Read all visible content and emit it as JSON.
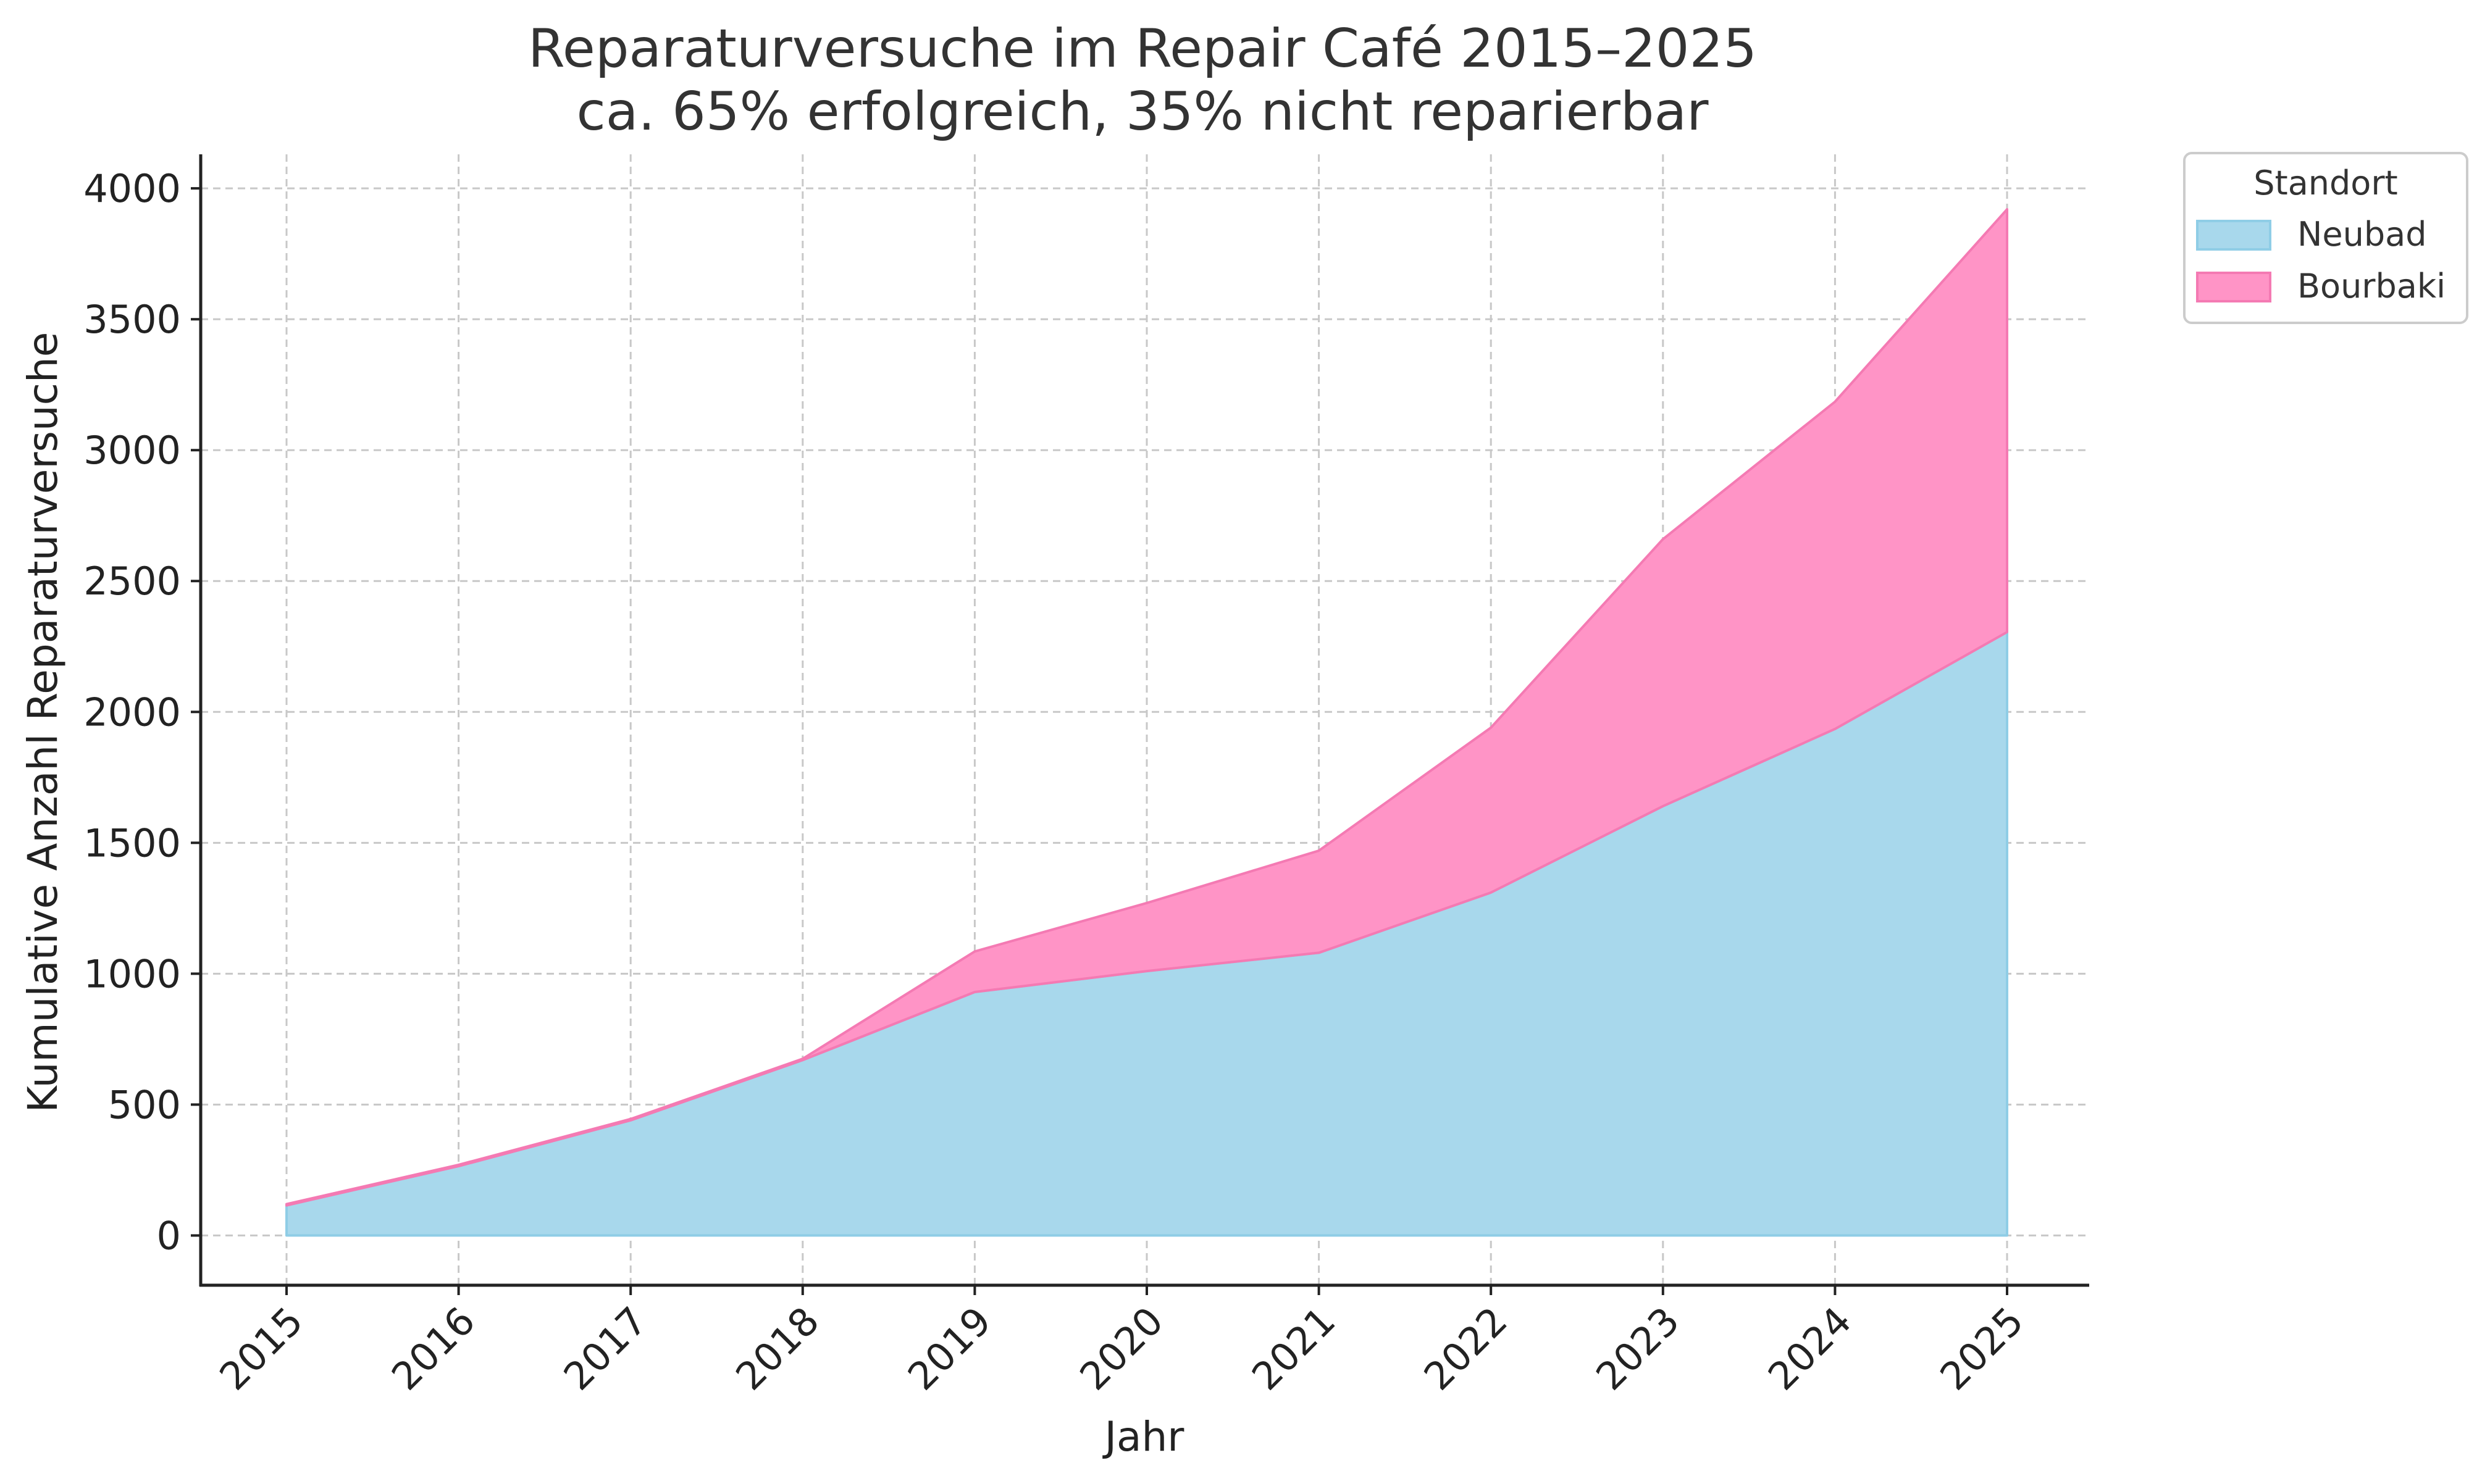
{
  "chart_data": {
    "type": "area",
    "stacked": true,
    "title": "Reparaturversuche im Repair Café 2015–2025",
    "subtitle": "ca. 65% erfolgreich, 35% nicht reparierbar",
    "xlabel": "Jahr",
    "ylabel": "Kumulative Anzahl Reparaturversuche",
    "x": [
      "2015",
      "2016",
      "2017",
      "2018",
      "2019",
      "2020",
      "2021",
      "2022",
      "2023",
      "2024",
      "2025"
    ],
    "series": [
      {
        "name": "Neubad",
        "color": "#a8d8ec",
        "edge": "#8fcde6",
        "values": [
          115,
          265,
          440,
          670,
          930,
          1010,
          1080,
          1310,
          1640,
          1935,
          2305
        ]
      },
      {
        "name": "Bourbaki",
        "color": "#ff94c6",
        "edge": "#f47ab3",
        "values": [
          5,
          5,
          5,
          5,
          155,
          260,
          390,
          630,
          1020,
          1250,
          1615
        ]
      }
    ],
    "ylim": [
      -190,
      4130
    ],
    "yticks": [
      "0",
      "500",
      "1000",
      "1500",
      "2000",
      "2500",
      "3000",
      "3500",
      "4000"
    ],
    "grid": true,
    "legend": {
      "title": "Standort",
      "position": "outside-top-right"
    }
  }
}
